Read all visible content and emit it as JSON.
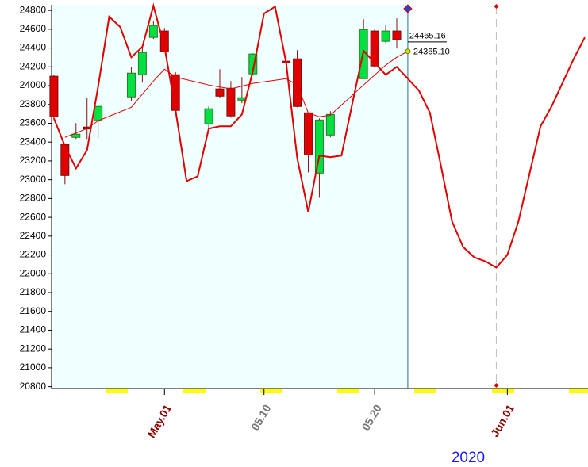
{
  "chart_data": {
    "type": "candlestick",
    "dates": [
      "2020-04-21",
      "2020-04-22",
      "2020-04-23",
      "2020-04-24",
      "2020-04-25",
      "2020-04-28",
      "2020-04-29",
      "2020-04-30",
      "2020-05-01",
      "2020-05-02",
      "2020-05-05",
      "2020-05-06",
      "2020-05-07",
      "2020-05-08",
      "2020-05-09",
      "2020-05-12",
      "2020-05-13",
      "2020-05-14",
      "2020-05-15",
      "2020-05-16",
      "2020-05-19",
      "2020-05-20",
      "2020-05-21",
      "2020-05-22"
    ],
    "open": [
      24100,
      23374,
      23450,
      23560,
      23635,
      23880,
      24116,
      24513,
      24581,
      24116,
      23593,
      23965,
      23973,
      23846,
      24125,
      24260,
      24285,
      23711,
      23070,
      23475,
      24074,
      24581,
      24471,
      24581
    ],
    "high": [
      24117,
      23374,
      23602,
      23872,
      23779,
      24200,
      24428,
      24682,
      24614,
      24142,
      23779,
      24175,
      24049,
      24091,
      24344,
      24361,
      24378,
      23711,
      23652,
      23728,
      24707,
      24606,
      24648,
      24716
    ],
    "low": [
      23650,
      22952,
      23433,
      23433,
      23441,
      23838,
      24032,
      24496,
      24360,
      23720,
      23500,
      23872,
      23660,
      23813,
      24108,
      24200,
      23770,
      23078,
      22808,
      23450,
      24074,
      24190,
      24455,
      24395
    ],
    "close": [
      23669,
      23045,
      23484,
      23540,
      23779,
      24133,
      24353,
      24640,
      24361,
      23737,
      23754,
      23888,
      23678,
      23872,
      24336,
      24243,
      23779,
      23264,
      23635,
      23694,
      24597,
      24209,
      24581,
      24488
    ],
    "up_color": "#00e040",
    "down_color": "#e00000",
    "series": [
      {
        "name": "moving-average",
        "color": "#e00000",
        "x": [
          "2020-04-22",
          "2020-04-24",
          "2020-04-25",
          "2020-04-28",
          "2020-04-30",
          "2020-05-01",
          "2020-05-02",
          "2020-05-05",
          "2020-05-07",
          "2020-05-09",
          "2020-05-12",
          "2020-05-13",
          "2020-05-14",
          "2020-05-15",
          "2020-05-16",
          "2020-05-19",
          "2020-05-21",
          "2020-05-22",
          "2020-05-23"
        ],
        "values": [
          23450,
          23543,
          23627,
          23770,
          24049,
          24175,
          24091,
          24007,
          23965,
          24024,
          24074,
          24007,
          23711,
          23669,
          23686,
          24007,
          24218,
          24302,
          24365.1
        ]
      },
      {
        "name": "forecast",
        "color": "#e00000",
        "x": [
          "2020-04-21",
          "2020-04-22",
          "2020-04-23",
          "2020-04-24",
          "2020-04-25",
          "2020-04-26",
          "2020-04-27",
          "2020-04-28",
          "2020-04-29",
          "2020-04-30",
          "2020-05-01",
          "2020-05-02",
          "2020-05-03",
          "2020-05-04",
          "2020-05-05",
          "2020-05-06",
          "2020-05-07",
          "2020-05-08",
          "2020-05-09",
          "2020-05-10",
          "2020-05-11",
          "2020-05-12",
          "2020-05-13",
          "2020-05-14",
          "2020-05-15",
          "2020-05-16",
          "2020-05-17",
          "2020-05-18",
          "2020-05-19",
          "2020-05-20",
          "2020-05-21",
          "2020-05-22",
          "2020-05-23",
          "2020-05-24",
          "2020-05-25",
          "2020-05-26",
          "2020-05-27",
          "2020-05-28",
          "2020-05-29",
          "2020-05-30",
          "2020-05-31",
          "2020-06-01",
          "2020-06-02",
          "2020-06-03",
          "2020-06-04",
          "2020-06-05",
          "2020-06-06",
          "2020-06-07",
          "2020-06-08"
        ],
        "values": [
          23652,
          23357,
          23121,
          23315,
          23990,
          24733,
          24623,
          24302,
          24412,
          24850,
          24412,
          23737,
          22985,
          23036,
          23543,
          23568,
          23568,
          23694,
          24159,
          24766,
          24840,
          24243,
          23230,
          22656,
          23256,
          23239,
          23256,
          23821,
          24370,
          24243,
          24116,
          24200,
          24074,
          23948,
          23711,
          23146,
          22555,
          22285,
          22175,
          22133,
          22066,
          22200,
          22555,
          23062,
          23568,
          23779,
          24032,
          24285,
          24513
        ]
      }
    ],
    "price_labels": [
      {
        "value": 24465.16,
        "label": "24465.16"
      },
      {
        "value": 24365.1,
        "label": "24365.10"
      }
    ],
    "today": "2020-05-23",
    "forecast_marker": "2020-05-31",
    "xlim": [
      "2020-04-20T19:00",
      "2020-06-08T07:00"
    ],
    "xticks": [
      {
        "value": "2020-05-01",
        "label": "May.01"
      },
      {
        "value": "2020-05-10",
        "label": "05.10"
      },
      {
        "value": "2020-05-20",
        "label": "05.20"
      },
      {
        "value": "2020-06-01",
        "label": "Jun.01"
      }
    ],
    "ylim": [
      20780,
      24860
    ],
    "yticks": [
      20800,
      21000,
      21200,
      21400,
      21600,
      21800,
      22000,
      22200,
      22400,
      22600,
      22800,
      23000,
      23200,
      23400,
      23600,
      23800,
      24000,
      24200,
      24400,
      24600,
      24800
    ],
    "year_label": "2020"
  }
}
